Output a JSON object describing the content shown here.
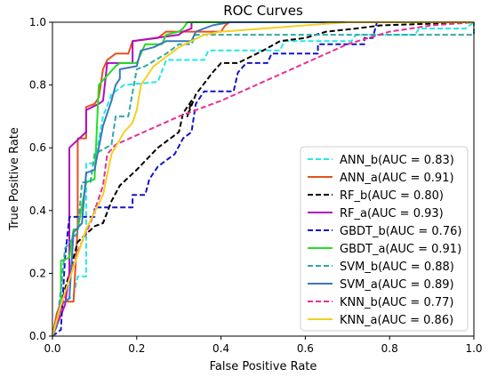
{
  "chart_data": {
    "type": "line",
    "title": "ROC Curves",
    "xlabel": "False Positive Rate",
    "ylabel": "True Positive Rate",
    "xlim": [
      0.0,
      1.0
    ],
    "ylim": [
      0.0,
      1.0
    ],
    "xticks": [
      "0.0",
      "0.2",
      "0.4",
      "0.6",
      "0.8",
      "1.0"
    ],
    "yticks": [
      "0.0",
      "0.2",
      "0.4",
      "0.6",
      "0.8",
      "1.0"
    ],
    "grid": false,
    "legend_position": "lower-right",
    "series": [
      {
        "name": "ANN_b(AUC = 0.83)",
        "color": "#22e8e8",
        "dash": "dashed",
        "points": [
          [
            0,
            0
          ],
          [
            0.01,
            0.03
          ],
          [
            0.02,
            0.1
          ],
          [
            0.05,
            0.13
          ],
          [
            0.06,
            0.19
          ],
          [
            0.08,
            0.19
          ],
          [
            0.08,
            0.55
          ],
          [
            0.1,
            0.55
          ],
          [
            0.12,
            0.7
          ],
          [
            0.14,
            0.77
          ],
          [
            0.17,
            0.8
          ],
          [
            0.25,
            0.81
          ],
          [
            0.27,
            0.88
          ],
          [
            0.36,
            0.88
          ],
          [
            0.37,
            0.91
          ],
          [
            0.54,
            0.91
          ],
          [
            0.55,
            0.94
          ],
          [
            0.71,
            0.94
          ],
          [
            0.72,
            0.96
          ],
          [
            0.86,
            0.96
          ],
          [
            0.87,
            0.98
          ],
          [
            0.98,
            0.98
          ],
          [
            1.0,
            1.0
          ]
        ]
      },
      {
        "name": "ANN_a(AUC = 0.91)",
        "color": "#e6501e",
        "dash": "solid",
        "points": [
          [
            0,
            0
          ],
          [
            0.01,
            0.07
          ],
          [
            0.02,
            0.11
          ],
          [
            0.05,
            0.11
          ],
          [
            0.06,
            0.35
          ],
          [
            0.06,
            0.63
          ],
          [
            0.08,
            0.63
          ],
          [
            0.08,
            0.73
          ],
          [
            0.1,
            0.74
          ],
          [
            0.11,
            0.76
          ],
          [
            0.12,
            0.85
          ],
          [
            0.13,
            0.88
          ],
          [
            0.15,
            0.9
          ],
          [
            0.18,
            0.9
          ],
          [
            0.19,
            0.94
          ],
          [
            0.25,
            0.95
          ],
          [
            0.27,
            0.97
          ],
          [
            0.4,
            0.97
          ],
          [
            0.41,
            0.99
          ],
          [
            0.42,
            1.0
          ],
          [
            1.0,
            1.0
          ]
        ]
      },
      {
        "name": "RF_b(AUC = 0.80)",
        "color": "#000000",
        "dash": "dashed",
        "points": [
          [
            0,
            0
          ],
          [
            0.02,
            0.1
          ],
          [
            0.04,
            0.2
          ],
          [
            0.06,
            0.3
          ],
          [
            0.1,
            0.35
          ],
          [
            0.12,
            0.36
          ],
          [
            0.14,
            0.43
          ],
          [
            0.16,
            0.48
          ],
          [
            0.2,
            0.53
          ],
          [
            0.25,
            0.6
          ],
          [
            0.3,
            0.65
          ],
          [
            0.31,
            0.71
          ],
          [
            0.33,
            0.75
          ],
          [
            0.32,
            0.7
          ],
          [
            0.34,
            0.77
          ],
          [
            0.38,
            0.84
          ],
          [
            0.4,
            0.87
          ],
          [
            0.44,
            0.87
          ],
          [
            0.5,
            0.91
          ],
          [
            0.54,
            0.94
          ],
          [
            0.6,
            0.95
          ],
          [
            0.65,
            0.97
          ],
          [
            0.72,
            0.98
          ],
          [
            0.78,
            0.99
          ],
          [
            1.0,
            1.0
          ]
        ]
      },
      {
        "name": "RF_a(AUC = 0.93)",
        "color": "#b10fbf",
        "dash": "solid",
        "points": [
          [
            0,
            0
          ],
          [
            0.03,
            0.1
          ],
          [
            0.04,
            0.2
          ],
          [
            0.04,
            0.6
          ],
          [
            0.08,
            0.65
          ],
          [
            0.08,
            0.72
          ],
          [
            0.11,
            0.74
          ],
          [
            0.12,
            0.75
          ],
          [
            0.13,
            0.87
          ],
          [
            0.19,
            0.87
          ],
          [
            0.19,
            0.94
          ],
          [
            0.3,
            0.96
          ],
          [
            0.31,
            0.97
          ],
          [
            0.33,
            0.98
          ],
          [
            0.33,
            1.0
          ],
          [
            1.0,
            1.0
          ]
        ]
      },
      {
        "name": "GBDT_b(AUC = 0.76)",
        "color": "#1414c8",
        "dash": "dashed",
        "points": [
          [
            0,
            0
          ],
          [
            0.02,
            0.02
          ],
          [
            0.03,
            0.25
          ],
          [
            0.04,
            0.38
          ],
          [
            0.1,
            0.38
          ],
          [
            0.1,
            0.41
          ],
          [
            0.19,
            0.41
          ],
          [
            0.19,
            0.45
          ],
          [
            0.22,
            0.45
          ],
          [
            0.23,
            0.5
          ],
          [
            0.25,
            0.54
          ],
          [
            0.27,
            0.56
          ],
          [
            0.29,
            0.58
          ],
          [
            0.31,
            0.63
          ],
          [
            0.33,
            0.65
          ],
          [
            0.34,
            0.74
          ],
          [
            0.36,
            0.78
          ],
          [
            0.43,
            0.78
          ],
          [
            0.44,
            0.84
          ],
          [
            0.46,
            0.87
          ],
          [
            0.51,
            0.87
          ],
          [
            0.52,
            0.9
          ],
          [
            0.63,
            0.9
          ],
          [
            0.63,
            0.93
          ],
          [
            0.74,
            0.93
          ],
          [
            0.74,
            0.95
          ],
          [
            0.76,
            0.95
          ],
          [
            0.77,
            1.0
          ],
          [
            1.0,
            1.0
          ]
        ]
      },
      {
        "name": "GBDT_a(AUC = 0.91)",
        "color": "#22e022",
        "dash": "solid",
        "points": [
          [
            0,
            0
          ],
          [
            0.02,
            0.1
          ],
          [
            0.02,
            0.24
          ],
          [
            0.04,
            0.25
          ],
          [
            0.05,
            0.34
          ],
          [
            0.06,
            0.34
          ],
          [
            0.08,
            0.49
          ],
          [
            0.1,
            0.5
          ],
          [
            0.11,
            0.8
          ],
          [
            0.13,
            0.83
          ],
          [
            0.15,
            0.86
          ],
          [
            0.16,
            0.87
          ],
          [
            0.2,
            0.87
          ],
          [
            0.22,
            0.93
          ],
          [
            0.26,
            0.93
          ],
          [
            0.27,
            0.96
          ],
          [
            0.3,
            0.97
          ],
          [
            0.31,
            0.98
          ],
          [
            0.32,
            1.0
          ],
          [
            1.0,
            1.0
          ]
        ]
      },
      {
        "name": "SVM_b(AUC = 0.88)",
        "color": "#30a8a8",
        "dash": "dashed",
        "points": [
          [
            0,
            0
          ],
          [
            0.01,
            0.03
          ],
          [
            0.02,
            0.15
          ],
          [
            0.03,
            0.28
          ],
          [
            0.06,
            0.33
          ],
          [
            0.07,
            0.49
          ],
          [
            0.09,
            0.49
          ],
          [
            0.1,
            0.58
          ],
          [
            0.14,
            0.61
          ],
          [
            0.15,
            0.7
          ],
          [
            0.18,
            0.7
          ],
          [
            0.2,
            0.85
          ],
          [
            0.22,
            0.86
          ],
          [
            0.27,
            0.9
          ],
          [
            0.3,
            0.93
          ],
          [
            0.33,
            0.93
          ],
          [
            0.34,
            0.96
          ],
          [
            1.0,
            0.96
          ],
          [
            1.0,
            1.0
          ]
        ]
      },
      {
        "name": "SVM_a(AUC = 0.89)",
        "color": "#3a78b8",
        "dash": "solid",
        "points": [
          [
            0,
            0
          ],
          [
            0.01,
            0.03
          ],
          [
            0.02,
            0.1
          ],
          [
            0.04,
            0.12
          ],
          [
            0.05,
            0.33
          ],
          [
            0.07,
            0.36
          ],
          [
            0.08,
            0.52
          ],
          [
            0.1,
            0.53
          ],
          [
            0.11,
            0.6
          ],
          [
            0.12,
            0.67
          ],
          [
            0.13,
            0.71
          ],
          [
            0.14,
            0.75
          ],
          [
            0.15,
            0.8
          ],
          [
            0.16,
            0.82
          ],
          [
            0.16,
            0.85
          ],
          [
            0.2,
            0.86
          ],
          [
            0.21,
            0.91
          ],
          [
            0.24,
            0.92
          ],
          [
            0.27,
            0.94
          ],
          [
            0.33,
            0.94
          ],
          [
            0.34,
            0.97
          ],
          [
            0.38,
            0.99
          ],
          [
            0.42,
            1.0
          ],
          [
            1.0,
            1.0
          ]
        ]
      },
      {
        "name": "KNN_b(AUC = 0.77)",
        "color": "#e82f96",
        "dash": "dashed",
        "points": [
          [
            0,
            0
          ],
          [
            0.02,
            0.08
          ],
          [
            0.04,
            0.18
          ],
          [
            0.06,
            0.27
          ],
          [
            0.09,
            0.36
          ],
          [
            0.12,
            0.48
          ],
          [
            0.13,
            0.58
          ],
          [
            0.15,
            0.61
          ],
          [
            0.2,
            0.64
          ],
          [
            0.3,
            0.7
          ],
          [
            0.4,
            0.75
          ],
          [
            0.5,
            0.81
          ],
          [
            0.6,
            0.87
          ],
          [
            0.7,
            0.93
          ],
          [
            0.8,
            0.97
          ],
          [
            0.9,
            0.99
          ],
          [
            1.0,
            1.0
          ]
        ]
      },
      {
        "name": "KNN_a(AUC = 0.86)",
        "color": "#f5d020",
        "dash": "solid",
        "points": [
          [
            0,
            0
          ],
          [
            0.02,
            0.1
          ],
          [
            0.05,
            0.22
          ],
          [
            0.08,
            0.34
          ],
          [
            0.12,
            0.45
          ],
          [
            0.14,
            0.58
          ],
          [
            0.17,
            0.65
          ],
          [
            0.19,
            0.68
          ],
          [
            0.2,
            0.72
          ],
          [
            0.21,
            0.8
          ],
          [
            0.24,
            0.86
          ],
          [
            0.27,
            0.89
          ],
          [
            0.3,
            0.92
          ],
          [
            0.36,
            0.96
          ],
          [
            0.4,
            0.97
          ],
          [
            0.5,
            0.98
          ],
          [
            0.6,
            0.99
          ],
          [
            0.7,
            1.0
          ],
          [
            1.0,
            1.0
          ]
        ]
      }
    ]
  }
}
